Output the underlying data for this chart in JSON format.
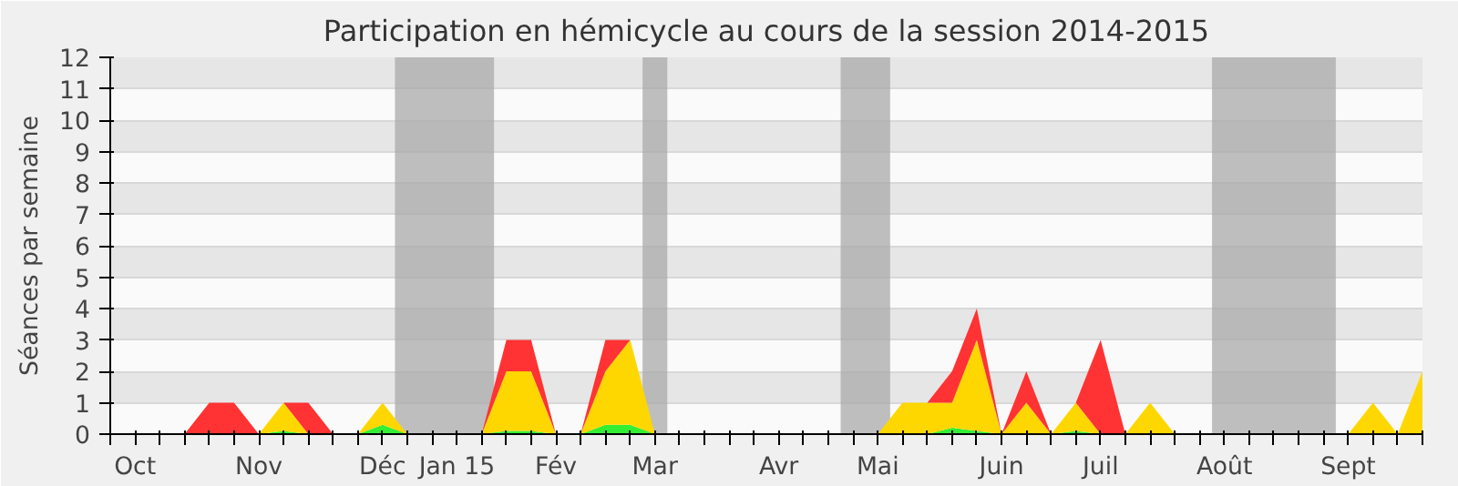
{
  "chart_data": {
    "type": "area",
    "stacked": true,
    "title": "Participation en hémicycle au cours de la session 2014-2015",
    "ylabel": "Séances par semaine",
    "x": [
      "2014-09-29",
      "2014-10-06",
      "2014-10-13",
      "2014-10-20",
      "2014-10-27",
      "2014-11-03",
      "2014-11-10",
      "2014-11-17",
      "2014-11-24",
      "2014-12-01",
      "2014-12-08",
      "2014-12-15",
      "2014-12-22",
      "2014-12-29",
      "2015-01-05",
      "2015-01-12",
      "2015-01-19",
      "2015-01-26",
      "2015-02-02",
      "2015-02-09",
      "2015-02-16",
      "2015-02-23",
      "2015-03-02",
      "2015-03-09",
      "2015-03-16",
      "2015-03-23",
      "2015-03-30",
      "2015-04-06",
      "2015-04-13",
      "2015-04-20",
      "2015-04-27",
      "2015-05-04",
      "2015-05-11",
      "2015-05-18",
      "2015-05-25",
      "2015-06-01",
      "2015-06-08",
      "2015-06-15",
      "2015-06-22",
      "2015-06-29",
      "2015-07-06",
      "2015-07-13",
      "2015-07-20",
      "2015-07-27",
      "2015-08-03",
      "2015-08-10",
      "2015-08-17",
      "2015-08-24",
      "2015-08-31",
      "2015-09-07",
      "2015-09-14",
      "2015-09-21",
      "2015-09-28",
      "2015-10-05"
    ],
    "series": [
      {
        "color": "#33ee33",
        "values": [
          0,
          0,
          0,
          0,
          0,
          0,
          0,
          0.1,
          0,
          0,
          0,
          0.3,
          0,
          0,
          0,
          0,
          0.1,
          0.1,
          0,
          0,
          0.3,
          0.3,
          0,
          0,
          0,
          0,
          0,
          0,
          0,
          0,
          0,
          0,
          0,
          0,
          0.2,
          0.1,
          0,
          0,
          0,
          0.1,
          0,
          0,
          0,
          0,
          0,
          0,
          0,
          0,
          0,
          0,
          0,
          0,
          0,
          0
        ]
      },
      {
        "color": "#ffd700",
        "values": [
          0,
          0,
          0,
          0,
          0,
          0,
          0,
          0.9,
          0,
          0,
          0,
          0.7,
          0,
          0,
          0,
          0,
          1.9,
          1.9,
          0,
          0,
          1.7,
          2.7,
          0,
          0,
          0,
          0,
          0,
          0,
          0,
          0,
          0,
          0,
          1,
          1,
          0.8,
          2.9,
          0,
          1,
          0,
          0.9,
          0,
          0,
          1,
          0,
          0,
          0,
          0,
          0,
          0,
          0,
          0,
          1,
          0,
          2
        ]
      },
      {
        "color": "#ff3333",
        "values": [
          0,
          0,
          0,
          0,
          1,
          1,
          0,
          0,
          1,
          0,
          0,
          0,
          0,
          0,
          0,
          0,
          1,
          1,
          0,
          0,
          1,
          0,
          0,
          0,
          0,
          0,
          0,
          0,
          0,
          0,
          0,
          0,
          0,
          0,
          1,
          1,
          0,
          1,
          0,
          0,
          3,
          0,
          0,
          0,
          0,
          0,
          0,
          0,
          0,
          0,
          0,
          0,
          0,
          0
        ]
      }
    ],
    "xlim": [
      "2014-09-29",
      "2015-10-05"
    ],
    "xticks": [
      {
        "value": "2014-09-29",
        "label": null
      },
      {
        "value": "2014-10-06",
        "label": "Oct"
      },
      {
        "value": "2014-10-13",
        "label": null
      },
      {
        "value": "2014-10-20",
        "label": null
      },
      {
        "value": "2014-10-27",
        "label": null
      },
      {
        "value": "2014-11-03",
        "label": null
      },
      {
        "value": "2014-11-10",
        "label": "Nov"
      },
      {
        "value": "2014-11-17",
        "label": null
      },
      {
        "value": "2014-11-24",
        "label": null
      },
      {
        "value": "2014-12-01",
        "label": null
      },
      {
        "value": "2014-12-08",
        "label": null
      },
      {
        "value": "2014-12-15",
        "label": "Déc"
      },
      {
        "value": "2014-12-22",
        "label": null
      },
      {
        "value": "2014-12-29",
        "label": null
      },
      {
        "value": "2015-01-05",
        "label": "Jan 15"
      },
      {
        "value": "2015-01-12",
        "label": null
      },
      {
        "value": "2015-01-19",
        "label": null
      },
      {
        "value": "2015-01-26",
        "label": null
      },
      {
        "value": "2015-02-02",
        "label": "Fév"
      },
      {
        "value": "2015-02-09",
        "label": null
      },
      {
        "value": "2015-02-16",
        "label": null
      },
      {
        "value": "2015-02-23",
        "label": null
      },
      {
        "value": "2015-03-02",
        "label": "Mar"
      },
      {
        "value": "2015-03-09",
        "label": null
      },
      {
        "value": "2015-03-16",
        "label": null
      },
      {
        "value": "2015-03-23",
        "label": null
      },
      {
        "value": "2015-03-30",
        "label": null
      },
      {
        "value": "2015-04-06",
        "label": "Avr"
      },
      {
        "value": "2015-04-13",
        "label": null
      },
      {
        "value": "2015-04-20",
        "label": null
      },
      {
        "value": "2015-04-27",
        "label": null
      },
      {
        "value": "2015-05-04",
        "label": "Mai"
      },
      {
        "value": "2015-05-11",
        "label": null
      },
      {
        "value": "2015-05-18",
        "label": null
      },
      {
        "value": "2015-05-25",
        "label": null
      },
      {
        "value": "2015-06-01",
        "label": null
      },
      {
        "value": "2015-06-08",
        "label": "Juin"
      },
      {
        "value": "2015-06-15",
        "label": null
      },
      {
        "value": "2015-06-22",
        "label": null
      },
      {
        "value": "2015-06-29",
        "label": null
      },
      {
        "value": "2015-07-06",
        "label": "Juil"
      },
      {
        "value": "2015-07-13",
        "label": null
      },
      {
        "value": "2015-07-20",
        "label": null
      },
      {
        "value": "2015-07-27",
        "label": null
      },
      {
        "value": "2015-08-03",
        "label": null
      },
      {
        "value": "2015-08-10",
        "label": "Août"
      },
      {
        "value": "2015-08-17",
        "label": null
      },
      {
        "value": "2015-08-24",
        "label": null
      },
      {
        "value": "2015-08-31",
        "label": null
      },
      {
        "value": "2015-09-07",
        "label": null
      },
      {
        "value": "2015-09-14",
        "label": "Sept"
      },
      {
        "value": "2015-09-21",
        "label": null
      },
      {
        "value": "2015-09-28",
        "label": null
      },
      {
        "value": "2015-10-05",
        "label": null
      }
    ],
    "ylim": [
      0,
      12
    ],
    "yticks": [
      0,
      1,
      2,
      3,
      4,
      5,
      6,
      7,
      8,
      9,
      10,
      11,
      12
    ],
    "grid": "y",
    "bands": [
      {
        "axis": "x",
        "from": "2014-12-18T12:00",
        "to": "2015-01-15T12:00",
        "color": "#aaaaaa"
      },
      {
        "axis": "x",
        "from": "2015-02-26T12:00",
        "to": "2015-03-05T12:00",
        "color": "#aaaaaa"
      },
      {
        "axis": "x",
        "from": "2015-04-23T12:00",
        "to": "2015-05-07T12:00",
        "color": "#aaaaaa"
      },
      {
        "axis": "x",
        "from": "2015-08-06T12:00",
        "to": "2015-09-10T12:00",
        "color": "#aaaaaa"
      }
    ]
  }
}
